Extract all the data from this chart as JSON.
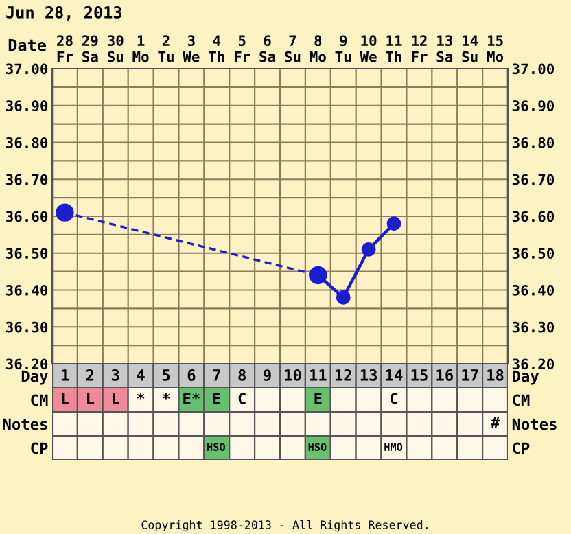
{
  "chart_data": [
    {
      "type": "line",
      "title": "Jun 28, 2013",
      "xlabel": "Date",
      "categories": [
        "28\nFr",
        "29\nSa",
        "30\nSu",
        "1\nMo",
        "2\nTu",
        "3\nWe",
        "4\nTh",
        "5\nFr",
        "6\nSa",
        "7\nSu",
        "8\nMo",
        "9\nTu",
        "10\nWe",
        "11\nTh",
        "12\nFr",
        "13\nSa",
        "14\nSu",
        "15\nMo"
      ],
      "series": [
        {
          "color": "#1c1cd0",
          "line_style": "dashed",
          "values": [
            36.61,
            null,
            null,
            null,
            null,
            null,
            null,
            null,
            null,
            null,
            36.44,
            null,
            null,
            null,
            null,
            null,
            null,
            null
          ]
        },
        {
          "color": "#1c1cd0",
          "line_style": "solid",
          "values": [
            null,
            null,
            null,
            null,
            null,
            null,
            null,
            null,
            null,
            null,
            36.44,
            36.38,
            36.51,
            36.58,
            null,
            null,
            null,
            null
          ]
        }
      ],
      "marker": "circle",
      "grid": true,
      "ylim": [
        36.2,
        37.0
      ],
      "y2lim": [
        36.2,
        37.0
      ],
      "yticks": [
        {
          "value": 36.2,
          "label": "36.20"
        },
        {
          "value": 36.25,
          "label": null
        },
        {
          "value": 36.3,
          "label": "36.30"
        },
        {
          "value": 36.35,
          "label": null
        },
        {
          "value": 36.4,
          "label": "36.40"
        },
        {
          "value": 36.45,
          "label": null
        },
        {
          "value": 36.5,
          "label": "36.50"
        },
        {
          "value": 36.55,
          "label": null
        },
        {
          "value": 36.6,
          "label": "36.60"
        },
        {
          "value": 36.65,
          "label": null
        },
        {
          "value": 36.7,
          "label": "36.70"
        },
        {
          "value": 36.75,
          "label": null
        },
        {
          "value": 36.8,
          "label": "36.80"
        },
        {
          "value": 36.85,
          "label": null
        },
        {
          "value": 36.9,
          "label": "36.90"
        },
        {
          "value": 36.95,
          "label": null
        },
        {
          "value": 37.0,
          "label": "37.00"
        }
      ],
      "y2ticks": [
        {
          "value": 36.2,
          "label": "36.20"
        },
        {
          "value": 36.3,
          "label": "36.30"
        },
        {
          "value": 36.4,
          "label": "36.40"
        },
        {
          "value": 36.5,
          "label": "36.50"
        },
        {
          "value": 36.6,
          "label": "36.60"
        },
        {
          "value": 36.7,
          "label": "36.70"
        },
        {
          "value": 36.8,
          "label": "36.80"
        },
        {
          "value": 36.9,
          "label": "36.90"
        },
        {
          "value": 37.0,
          "label": "37.00"
        }
      ]
    },
    {
      "type": "heatmap",
      "categories": [
        "1",
        "2",
        "3",
        "4",
        "5",
        "6",
        "7",
        "8",
        "9",
        "10",
        "11",
        "12",
        "13",
        "14",
        "15",
        "16",
        "17",
        "18"
      ],
      "y_categories": [
        "Day",
        "CM",
        "Notes",
        "CP"
      ],
      "y2_categories": [
        "Day",
        "CM",
        "Notes",
        "CP"
      ],
      "cells": [
        [
          null,
          null,
          null,
          null,
          null,
          null,
          null,
          null,
          null,
          null,
          null,
          null,
          null,
          null,
          null,
          null,
          null,
          null
        ],
        [
          null,
          null,
          null,
          null,
          null,
          null,
          null,
          null,
          null,
          null,
          null,
          null,
          null,
          null,
          null,
          null,
          null,
          null
        ],
        [
          null,
          null,
          null,
          null,
          null,
          null,
          null,
          null,
          null,
          null,
          null,
          null,
          null,
          null,
          null,
          null,
          null,
          null
        ],
        [
          null,
          null,
          null,
          null,
          null,
          null,
          null,
          null,
          null,
          null,
          null,
          null,
          null,
          null,
          null,
          null,
          null,
          null
        ]
      ],
      "cell_labels": [
        [
          null,
          null,
          null,
          null,
          null,
          null,
          null,
          null,
          null,
          null,
          null,
          null,
          null,
          null,
          null,
          null,
          null,
          null
        ],
        [
          "L",
          "L",
          "L",
          "*",
          "*",
          "E*",
          "E",
          "C",
          null,
          null,
          "E",
          null,
          null,
          "C",
          null,
          null,
          null,
          null
        ],
        [
          null,
          null,
          null,
          null,
          null,
          null,
          null,
          null,
          null,
          null,
          null,
          null,
          null,
          null,
          null,
          null,
          null,
          "#"
        ],
        [
          null,
          null,
          null,
          null,
          null,
          null,
          "HSO",
          null,
          null,
          null,
          "HSO",
          null,
          null,
          "HMO",
          null,
          null,
          null,
          null
        ]
      ],
      "colors": [
        [
          "#c8c8c8",
          "#c8c8c8",
          "#c8c8c8",
          "#c8c8c8",
          "#c8c8c8",
          "#c8c8c8",
          "#c8c8c8",
          "#c8c8c8",
          "#c8c8c8",
          "#c8c8c8",
          "#c8c8c8",
          "#c8c8c8",
          "#c8c8c8",
          "#c8c8c8",
          "#c8c8c8",
          "#c8c8c8",
          "#c8c8c8",
          "#c8c8c8"
        ],
        [
          "#f08a98",
          "#f08a98",
          "#f08a98",
          "#fff8e8",
          "#fff8e8",
          "#66c070",
          "#66c070",
          "#fff8e8",
          "#fff8e8",
          "#fff8e8",
          "#66c070",
          "#fff8e8",
          "#fff8e8",
          "#fff8e8",
          "#fff8e8",
          "#fff8e8",
          "#fff8e8",
          "#fff8e8"
        ],
        [
          "#fff8e8",
          "#fff8e8",
          "#fff8e8",
          "#fff8e8",
          "#fff8e8",
          "#fff8e8",
          "#fff8e8",
          "#fff8e8",
          "#fff8e8",
          "#fff8e8",
          "#fff8e8",
          "#fff8e8",
          "#fff8e8",
          "#fff8e8",
          "#fff8e8",
          "#fff8e8",
          "#fff8e8",
          "#fff8e8"
        ],
        [
          "#fff8e8",
          "#fff8e8",
          "#fff8e8",
          "#fff8e8",
          "#fff8e8",
          "#fff8e8",
          "#66c070",
          "#fff8e8",
          "#fff8e8",
          "#fff8e8",
          "#66c070",
          "#fff8e8",
          "#fff8e8",
          "#fff8e8",
          "#fff8e8",
          "#fff8e8",
          "#fff8e8",
          "#fff8e8"
        ]
      ],
      "annotations": [
        "Copyright 1998-2013 - All Rights Reserved."
      ]
    }
  ]
}
